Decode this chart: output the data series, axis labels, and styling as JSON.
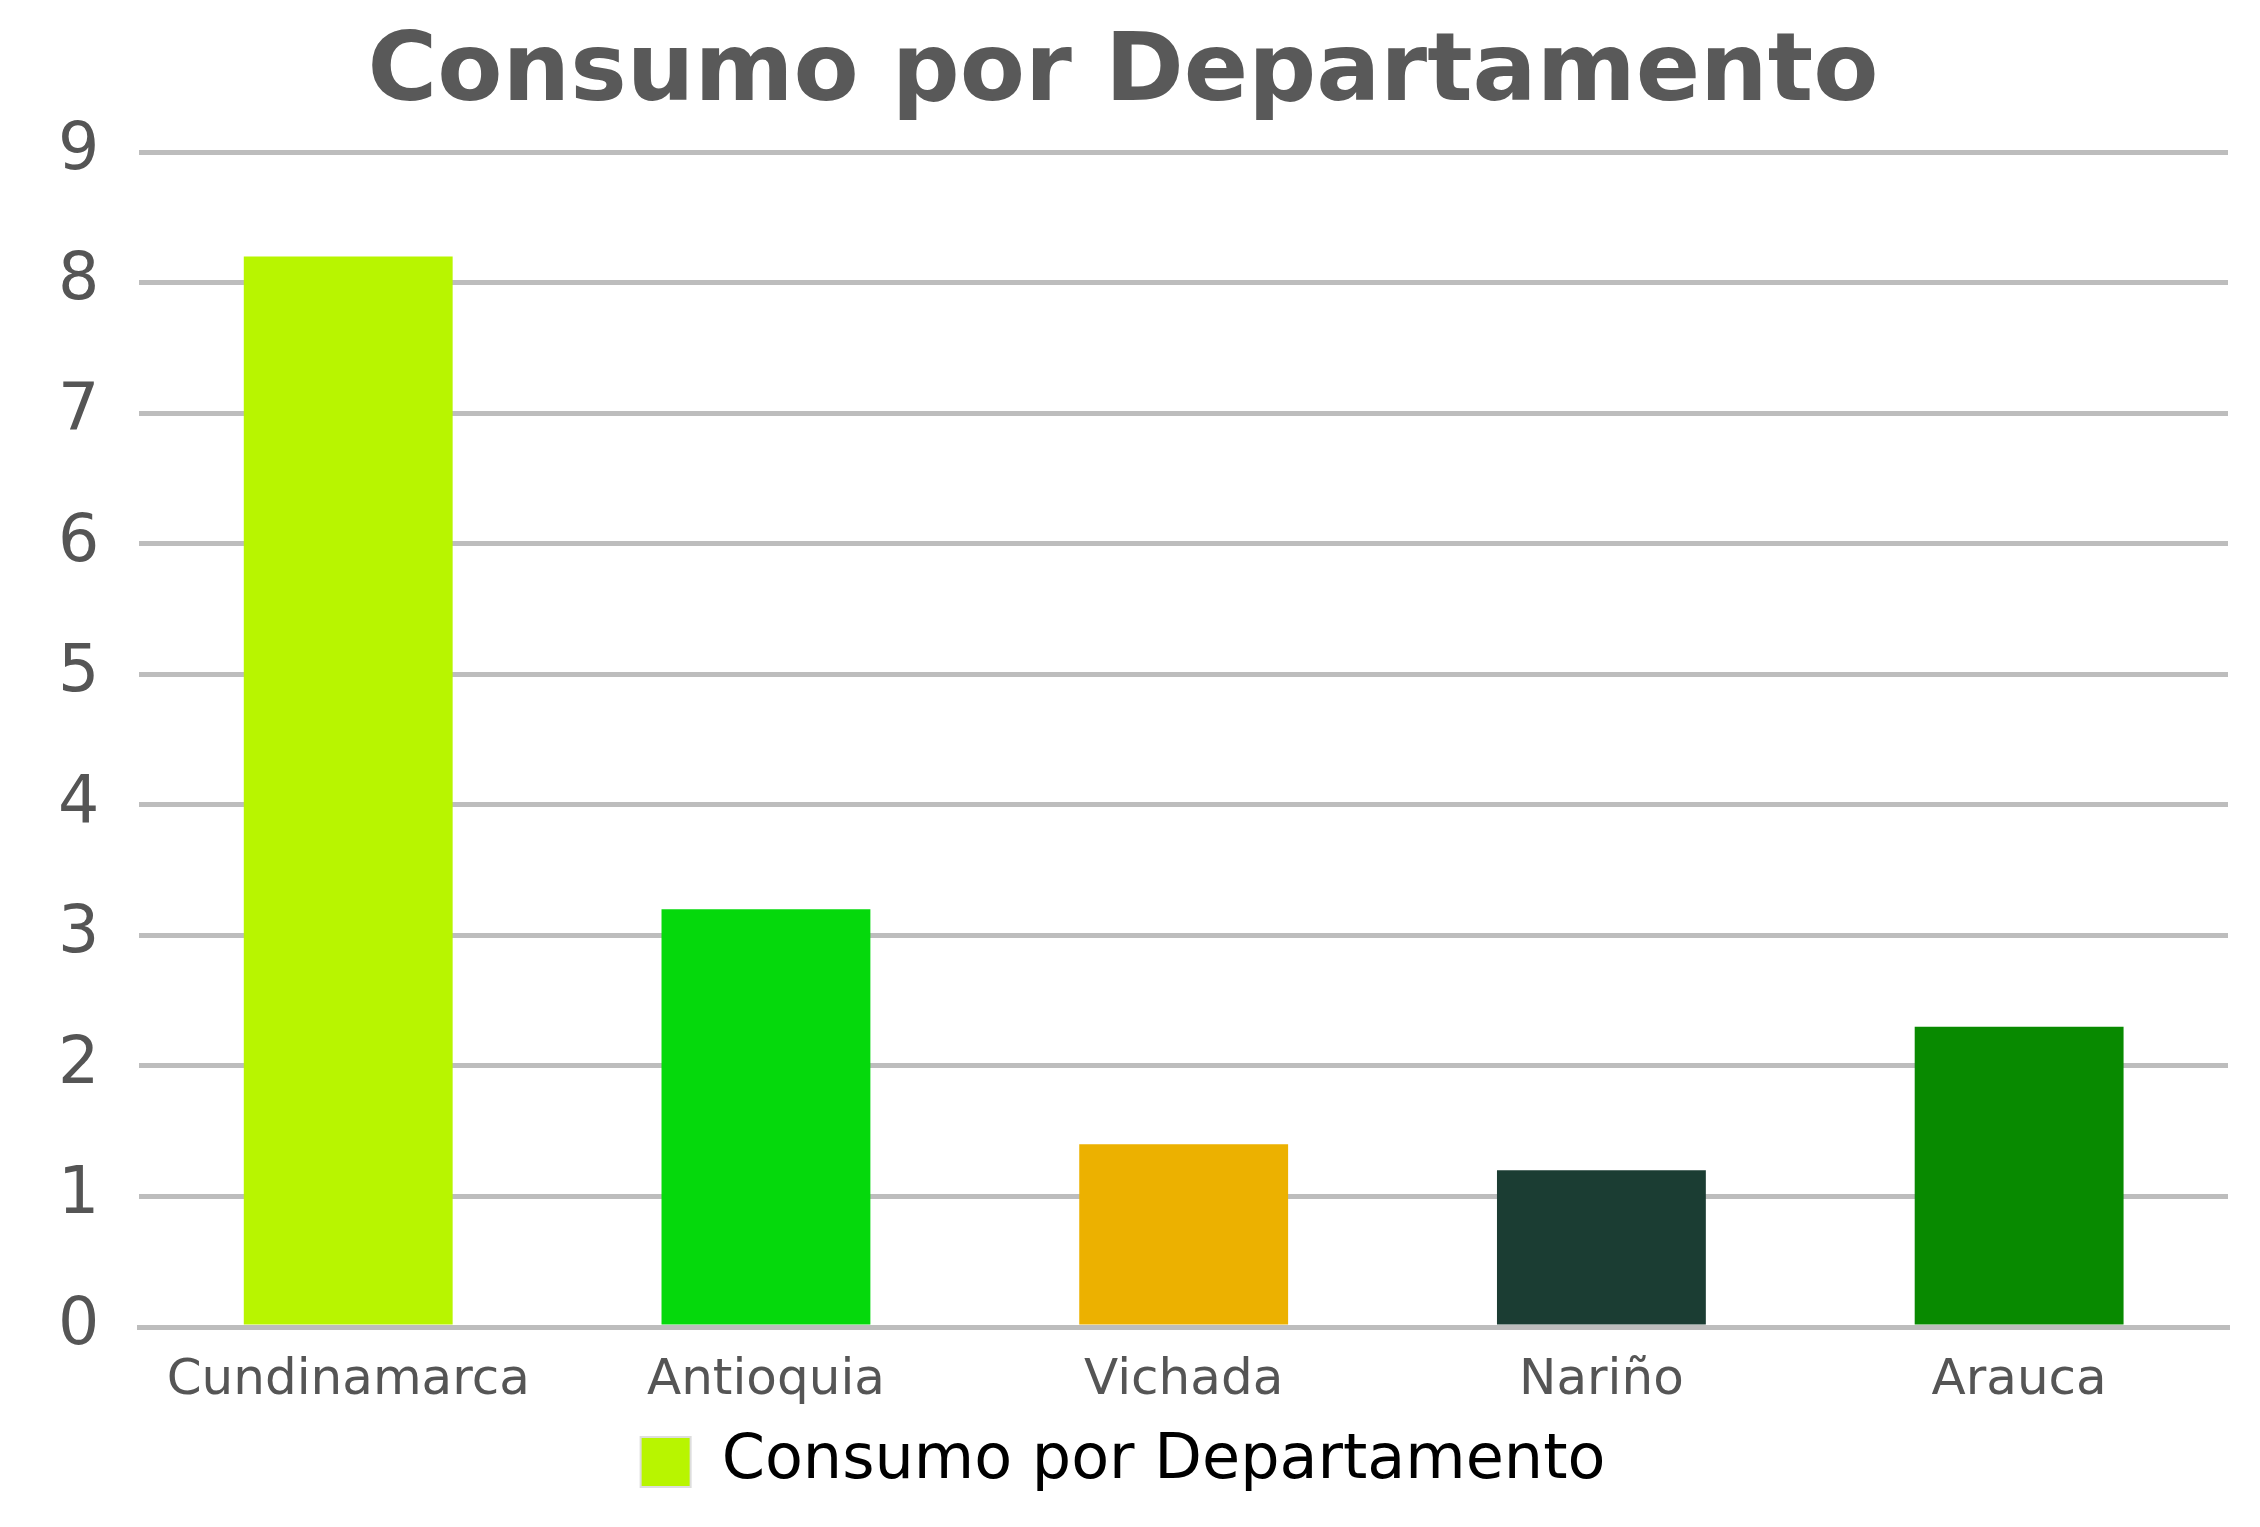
{
  "chart_data": {
    "type": "bar",
    "title": "Consumo por Departamento",
    "categories": [
      "Cundinamarca",
      "Antioquia",
      "Vichada",
      "Nariño",
      "Arauca"
    ],
    "series": [
      {
        "name": "Consumo por Departamento",
        "colors": [
          "#b8f500",
          "#05d90c",
          "#ecb100",
          "#1b3d33",
          "#088a00"
        ],
        "values": [
          8.2,
          3.2,
          1.4,
          1.2,
          2.3
        ]
      }
    ],
    "ylim": [
      0,
      9
    ],
    "yticks": [
      0,
      1,
      2,
      3,
      4,
      5,
      6,
      7,
      8,
      9
    ],
    "grid": "y",
    "legend": "bottom"
  }
}
